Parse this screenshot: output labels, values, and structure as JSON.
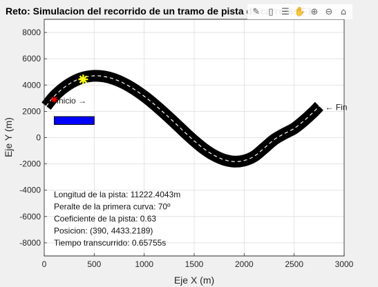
{
  "chart_data": {
    "type": "line",
    "title": "Reto: Simulacion del recorrido de un tramo de pista de carreras F1",
    "xlabel": "Eje X (m)",
    "ylabel": "Eje Y (m)",
    "xlim": [
      0,
      3000
    ],
    "ylim": [
      -9000,
      9000
    ],
    "xticks": [
      "0",
      "500",
      "1000",
      "1500",
      "2000",
      "2500",
      "3000"
    ],
    "yticks": [
      "-8000",
      "-6000",
      "-4000",
      "-2000",
      "0",
      "2000",
      "4000",
      "6000",
      "8000"
    ],
    "grid": true,
    "track": {
      "description": "cubic road curve",
      "x": [
        20,
        100,
        200,
        300,
        400,
        500,
        600,
        700,
        800,
        900,
        1000,
        1100,
        1200,
        1300,
        1400,
        1500,
        1600,
        1700,
        1800,
        1900,
        2000,
        2100,
        2200,
        2300,
        2400,
        2500,
        2600,
        2700,
        2750
      ],
      "y": [
        2400,
        3150,
        3820,
        4300,
        4590,
        4700,
        4650,
        4450,
        4120,
        3680,
        3150,
        2540,
        1870,
        1170,
        450,
        -240,
        -860,
        -1350,
        -1680,
        -1820,
        -1740,
        -1420,
        -800,
        -150,
        300,
        700,
        1300,
        2000,
        2400
      ],
      "track_color": "#000000",
      "centerline_color": "#ffffff"
    },
    "markers": [
      {
        "label": "start-marker",
        "x": 100,
        "y": 2900,
        "color": "#ff0000",
        "symbol": "asterisk"
      },
      {
        "label": "car-position",
        "x": 390,
        "y": 4433.2189,
        "color": "#ffff00",
        "symbol": "asterisk"
      }
    ],
    "annotations": [
      {
        "text": "Inicio →",
        "x": 90,
        "y": 2800
      },
      {
        "text": "← Fin",
        "x": 2810,
        "y": 2300
      }
    ],
    "rectangle": {
      "x": [
        100,
        500
      ],
      "y": [
        1000,
        1600
      ],
      "color": "#0000ff"
    },
    "info_lines": [
      "Longitud de la pista: 11222.4043m",
      "Peralte de la primera curva: 70º",
      "Coeficiente de la pista: 0.63",
      "Posicion: (390, 4433.2189)",
      "Tiempo transcurrido: 0.65755s"
    ]
  },
  "toolbar": {
    "icons": [
      "edit-plot-icon",
      "insert-data-tip-icon",
      "insert-legend-icon",
      "pan-icon",
      "zoom-in-icon",
      "zoom-out-icon",
      "home-icon"
    ],
    "glyphs": [
      "✎",
      "▯",
      "☰",
      "✋",
      "⊕",
      "⊖",
      "⌂"
    ]
  }
}
